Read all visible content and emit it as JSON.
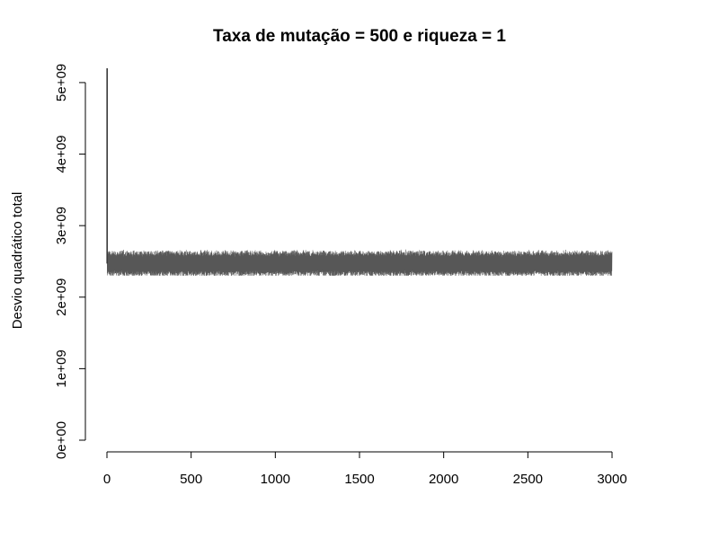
{
  "chart_data": {
    "type": "line",
    "title": "Taxa de mutação = 500 e riqueza = 1",
    "xlabel": "",
    "ylabel": "Desvio quadrático total",
    "xlim": [
      0,
      3000
    ],
    "ylim": [
      0,
      5200000000
    ],
    "x_ticks": [
      0,
      500,
      1000,
      1500,
      2000,
      2500,
      3000
    ],
    "x_tick_labels": [
      "0",
      "500",
      "1000",
      "1500",
      "2000",
      "2500",
      "3000"
    ],
    "y_ticks": [
      0,
      1000000000,
      2000000000,
      3000000000,
      4000000000,
      5000000000
    ],
    "y_tick_labels": [
      "0e+00",
      "1e+09",
      "2e+09",
      "3e+09",
      "4e+09",
      "5e+09"
    ],
    "grid": false,
    "legend": "none",
    "line_color": "#3a3a3a",
    "series": [
      {
        "x_start": 1,
        "x_end": 3000,
        "initial_value": 5200000000,
        "band_center": 2470000000,
        "band_low": 2300000000,
        "band_high": 2700000000
      }
    ]
  }
}
